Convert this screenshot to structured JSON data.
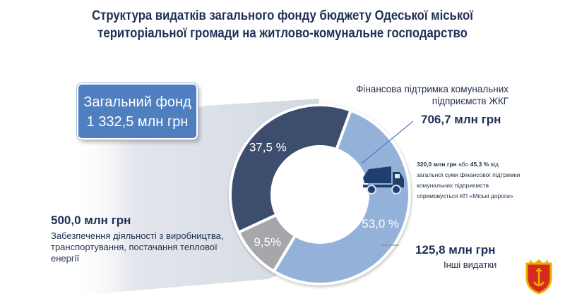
{
  "header": {
    "title_line1": "Структура видатків загального фонду бюджету Одеської міської",
    "title_line2": "територіальної громади на житлово-комунальне господарство"
  },
  "fund_box": {
    "line1": "Загальний фонд",
    "line2": "1 332,5 млн грн"
  },
  "chart_data": {
    "type": "pie",
    "donut": true,
    "title": "Структура видатків загального фонду бюджету Одеської міської територіальної громади на житлово-комунальне господарство",
    "total": "1 332,5 млн грн",
    "slices": [
      {
        "label": "Фінансова підтримка комунальних підприємств ЖКГ",
        "value": 706.7,
        "value_text": "706,7 млн грн",
        "percent": 53.0,
        "percent_text": "53,0 %",
        "color": "#93b1d9"
      },
      {
        "label": "Інші видатки",
        "value": 125.8,
        "value_text": "125,8 млн грн",
        "percent": 9.5,
        "percent_text": "9,5%",
        "color": "#a7a7ab"
      },
      {
        "label": "Забезпечення діяльності з виробництва, транспортування, постачання теплової енергії",
        "value": 500.0,
        "value_text": "500,0 млн грн",
        "percent": 37.5,
        "percent_text": "37,5 %",
        "color": "#3e4d6e"
      }
    ],
    "annotation": {
      "amount": "320,0 млн грн",
      "text1": "або",
      "percent": "45,3 %",
      "text2": "від",
      "line2": "загальної суми фінансової підтримки",
      "line3": "комунальних підприємств",
      "line4": "спрямовується КП «Міські дороги»"
    }
  },
  "labels": {
    "support_desc_line1": "Фінансова підтримка комунальних",
    "support_desc_line2": "підприємств ЖКГ",
    "support_value": "706,7 млн грн",
    "heat_value": "500,0 млн грн",
    "heat_desc_line1": "Забезпечення діяльності з виробництва,",
    "heat_desc_line2": "транспортування, постачання теплової",
    "heat_desc_line3": "енергії",
    "other_value": "125,8 млн грн",
    "other_desc": "Інші видатки"
  },
  "icons": [
    "dump-truck-icon",
    "odesa-coat-of-arms-emblem"
  ],
  "colors": {
    "title": "#1f2f56",
    "fund_box": "#4f7fbf",
    "callout_bg": "#dfe3ea"
  }
}
